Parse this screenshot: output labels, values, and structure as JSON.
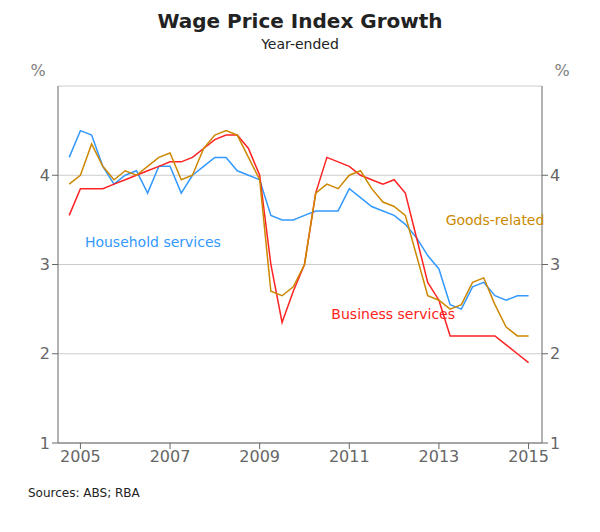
{
  "chart_data": {
    "type": "line",
    "title": "Wage Price Index Growth",
    "subtitle": "Year-ended",
    "ylabel": "%",
    "y2label": "%",
    "source": "Sources:  ABS; RBA",
    "x": [
      2004.75,
      2005.0,
      2005.25,
      2005.5,
      2005.75,
      2006.0,
      2006.25,
      2006.5,
      2006.75,
      2007.0,
      2007.25,
      2007.5,
      2007.75,
      2008.0,
      2008.25,
      2008.5,
      2008.75,
      2009.0,
      2009.25,
      2009.5,
      2009.75,
      2010.0,
      2010.25,
      2010.5,
      2010.75,
      2011.0,
      2011.25,
      2011.5,
      2011.75,
      2012.0,
      2012.25,
      2012.5,
      2012.75,
      2013.0,
      2013.25,
      2013.5,
      2013.75,
      2014.0,
      2014.25,
      2014.5,
      2014.75,
      2015.0
    ],
    "series": [
      {
        "name": "Household services",
        "color": "#3399FF",
        "values": [
          4.2,
          4.5,
          4.45,
          4.1,
          3.9,
          4.0,
          4.05,
          3.8,
          4.1,
          4.1,
          3.8,
          4.0,
          4.1,
          4.2,
          4.2,
          4.05,
          4.0,
          3.95,
          3.55,
          3.5,
          3.5,
          3.55,
          3.6,
          3.6,
          3.6,
          3.85,
          3.75,
          3.65,
          3.6,
          3.55,
          3.45,
          3.3,
          3.1,
          2.95,
          2.55,
          2.5,
          2.75,
          2.8,
          2.65,
          2.6,
          2.65,
          2.65
        ]
      },
      {
        "name": "Business services",
        "color": "#FF2222",
        "values": [
          3.55,
          3.85,
          3.85,
          3.85,
          3.9,
          3.95,
          4.0,
          4.05,
          4.1,
          4.15,
          4.15,
          4.2,
          4.3,
          4.4,
          4.45,
          4.45,
          4.3,
          4.0,
          3.0,
          2.35,
          2.7,
          3.0,
          3.8,
          4.2,
          4.15,
          4.1,
          4.0,
          3.95,
          3.9,
          3.95,
          3.8,
          3.3,
          2.8,
          2.6,
          2.2,
          2.2,
          2.2,
          2.2,
          2.2,
          2.1,
          2.0,
          1.9
        ]
      },
      {
        "name": "Goods-related",
        "color": "#CC8800",
        "values": [
          3.9,
          4.0,
          4.35,
          4.1,
          3.95,
          4.05,
          4.0,
          4.1,
          4.2,
          4.25,
          3.95,
          4.0,
          4.3,
          4.45,
          4.5,
          4.45,
          4.2,
          3.95,
          2.7,
          2.65,
          2.75,
          3.0,
          3.8,
          3.9,
          3.85,
          4.0,
          4.05,
          3.85,
          3.7,
          3.65,
          3.55,
          3.1,
          2.65,
          2.6,
          2.5,
          2.55,
          2.8,
          2.85,
          2.55,
          2.3,
          2.2,
          2.2
        ]
      }
    ],
    "xlim": [
      2004.5,
      2015.3
    ],
    "xticks": [
      2005,
      2007,
      2009,
      2011,
      2013,
      2015
    ],
    "ylim": [
      1,
      5
    ],
    "yticks": [
      1,
      2,
      3,
      4
    ],
    "y2lim": [
      1,
      5
    ],
    "y2ticks": [
      1,
      2,
      3,
      4
    ],
    "grid": true,
    "annotations": [
      {
        "text": "Household services",
        "x": 2005.1,
        "y": 3.25,
        "color": "#3399FF"
      },
      {
        "text": "Business services",
        "x": 2010.6,
        "y": 2.45,
        "color": "#FF2222"
      },
      {
        "text": "Goods-related",
        "x": 2013.15,
        "y": 3.5,
        "color": "#CC8800"
      }
    ]
  }
}
